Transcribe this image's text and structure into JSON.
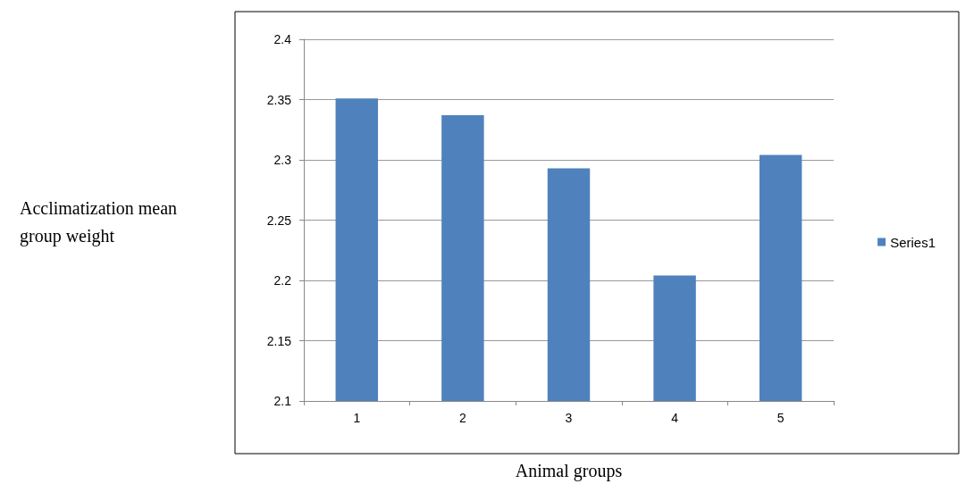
{
  "chart_data": {
    "type": "bar",
    "xlabel": "Animal groups",
    "annotations": [
      "Acclimatization mean group weight"
    ],
    "categories": [
      "1",
      "2",
      "3",
      "4",
      "5"
    ],
    "series": [
      {
        "name": "Series1",
        "color": "#4f81bd",
        "values": [
          2.351,
          2.337,
          2.293,
          2.204,
          2.304
        ]
      }
    ],
    "ylim": [
      2.1,
      2.4
    ],
    "yticks": [
      2.1,
      2.15,
      2.2,
      2.25,
      2.3,
      2.35,
      2.4
    ],
    "grid": "y",
    "legend": "right"
  }
}
